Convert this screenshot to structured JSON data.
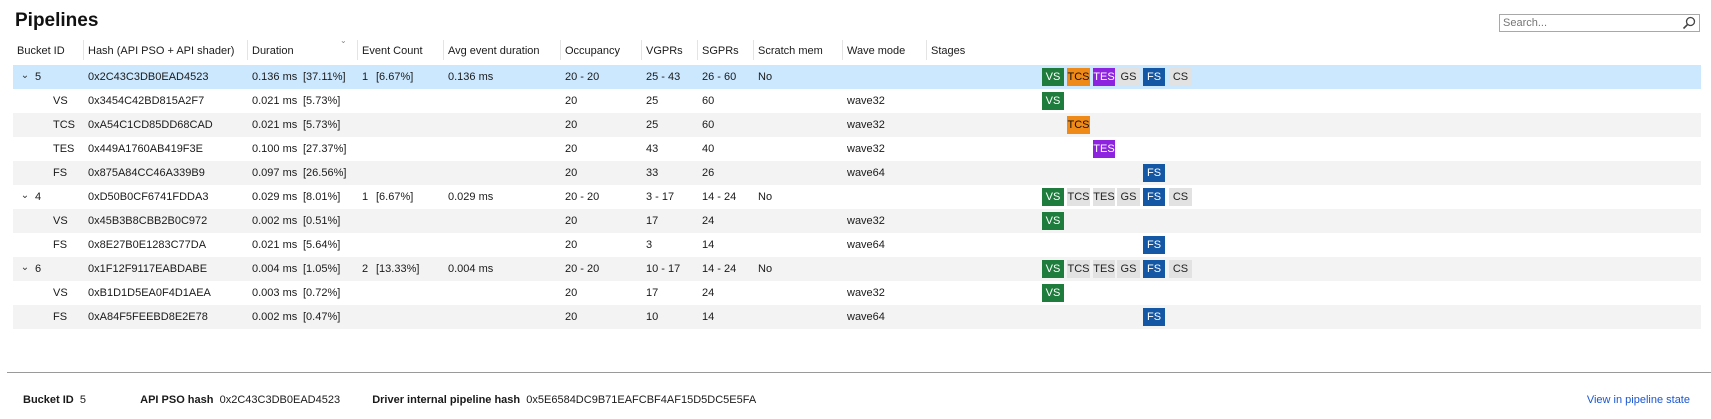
{
  "title": "Pipelines",
  "search": {
    "placeholder": "Search...",
    "icon": "search-icon"
  },
  "columns": [
    "Bucket ID",
    "Hash (API PSO + API shader)",
    "Duration",
    "Event Count",
    "Avg event duration",
    "Occupancy",
    "VGPRs",
    "SGPRs",
    "Scratch mem",
    "Wave mode",
    "Stages"
  ],
  "sort_indicator": "⌄",
  "stage_labels": {
    "vs": "VS",
    "tcs": "TCS",
    "tes": "TES",
    "gs": "GS",
    "fs": "FS",
    "cs": "CS"
  },
  "stage_colors": {
    "vs": "#1e7d3c",
    "tcs": "#ef8a19",
    "tes": "#8d23de",
    "fs": "#1457a5",
    "inactive": "#e2e2e2"
  },
  "rows": [
    {
      "type": "bucket",
      "id": "5",
      "hash": "0x2C43C3DB0EAD4523",
      "duration": "0.136 ms",
      "duration_pct": "[37.11%]",
      "event_count": "1",
      "event_pct": "[6.67%]",
      "avg": "0.136 ms",
      "occupancy": "20 - 20",
      "vgprs": "25 - 43",
      "sgprs": "26 - 60",
      "scratch": "No",
      "wave": "",
      "stages": {
        "vs": true,
        "tcs": true,
        "tes": true,
        "gs": false,
        "fs": true,
        "cs": false
      }
    },
    {
      "type": "shader",
      "stage": "VS",
      "hash": "0x3454C42BD815A2F7",
      "duration": "0.021 ms",
      "duration_pct": "[5.73%]",
      "occupancy": "20",
      "vgprs": "25",
      "sgprs": "60",
      "wave": "wave32",
      "active": "vs"
    },
    {
      "type": "shader",
      "stage": "TCS",
      "hash": "0xA54C1CD85DD68CAD",
      "duration": "0.021 ms",
      "duration_pct": "[5.73%]",
      "occupancy": "20",
      "vgprs": "25",
      "sgprs": "60",
      "wave": "wave32",
      "active": "tcs"
    },
    {
      "type": "shader",
      "stage": "TES",
      "hash": "0x449A1760AB419F3E",
      "duration": "0.100 ms",
      "duration_pct": "[27.37%]",
      "occupancy": "20",
      "vgprs": "43",
      "sgprs": "40",
      "wave": "wave32",
      "active": "tes"
    },
    {
      "type": "shader",
      "stage": "FS",
      "hash": "0x875A84CC46A339B9",
      "duration": "0.097 ms",
      "duration_pct": "[26.56%]",
      "occupancy": "20",
      "vgprs": "33",
      "sgprs": "26",
      "wave": "wave64",
      "active": "fs"
    },
    {
      "type": "bucket",
      "id": "4",
      "hash": "0xD50B0CF6741FDDA3",
      "duration": "0.029 ms",
      "duration_pct": "[8.01%]",
      "event_count": "1",
      "event_pct": "[6.67%]",
      "avg": "0.029 ms",
      "occupancy": "20 - 20",
      "vgprs": "3 - 17",
      "sgprs": "14 - 24",
      "scratch": "No",
      "wave": "",
      "stages": {
        "vs": true,
        "tcs": false,
        "tes": false,
        "gs": false,
        "fs": true,
        "cs": false
      }
    },
    {
      "type": "shader",
      "stage": "VS",
      "hash": "0x45B3B8CBB2B0C972",
      "duration": "0.002 ms",
      "duration_pct": "[0.51%]",
      "occupancy": "20",
      "vgprs": "17",
      "sgprs": "24",
      "wave": "wave32",
      "active": "vs"
    },
    {
      "type": "shader",
      "stage": "FS",
      "hash": "0x8E27B0E1283C77DA",
      "duration": "0.021 ms",
      "duration_pct": "[5.64%]",
      "occupancy": "20",
      "vgprs": "3",
      "sgprs": "14",
      "wave": "wave64",
      "active": "fs"
    },
    {
      "type": "bucket",
      "id": "6",
      "hash": "0x1F12F9117EABDABE",
      "duration": "0.004 ms",
      "duration_pct": "[1.05%]",
      "event_count": "2",
      "event_pct": "[13.33%]",
      "avg": "0.004 ms",
      "occupancy": "20 - 20",
      "vgprs": "10 - 17",
      "sgprs": "14 - 24",
      "scratch": "No",
      "wave": "",
      "stages": {
        "vs": true,
        "tcs": false,
        "tes": false,
        "gs": false,
        "fs": true,
        "cs": false
      }
    },
    {
      "type": "shader",
      "stage": "VS",
      "hash": "0xB1D1D5EA0F4D1AEA",
      "duration": "0.003 ms",
      "duration_pct": "[0.72%]",
      "occupancy": "20",
      "vgprs": "17",
      "sgprs": "24",
      "wave": "wave32",
      "active": "vs"
    },
    {
      "type": "shader",
      "stage": "FS",
      "hash": "0xA84F5FEEBD8E2E78",
      "duration": "0.002 ms",
      "duration_pct": "[0.47%]",
      "occupancy": "20",
      "vgprs": "10",
      "sgprs": "14",
      "wave": "wave64",
      "active": "fs"
    }
  ],
  "footer": {
    "bucket_label": "Bucket ID",
    "bucket_value": "5",
    "api_label": "API PSO hash",
    "api_value": "0x2C43C3DB0EAD4523",
    "driver_label": "Driver internal pipeline hash",
    "driver_value": "0x5E6584DC9B71EAFCBF4AF15D5DC5E5FA",
    "link": "View in pipeline state"
  }
}
